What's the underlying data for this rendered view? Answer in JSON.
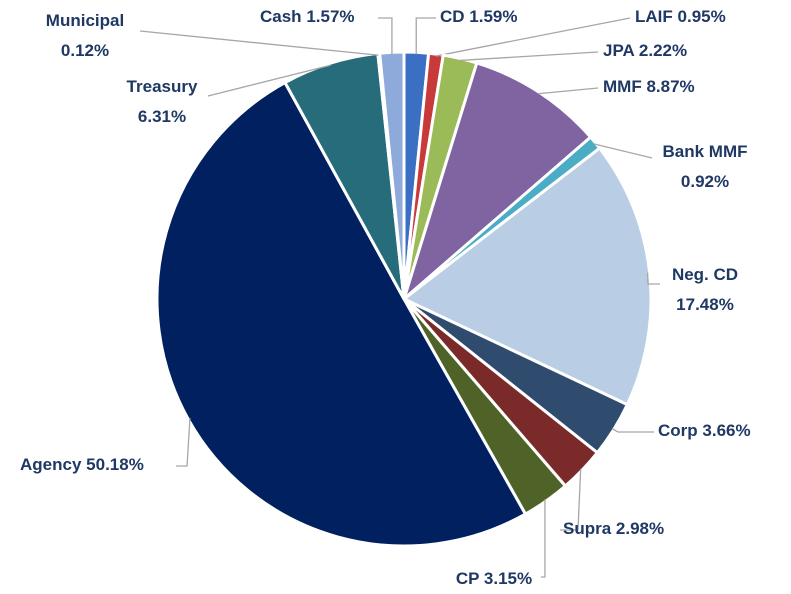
{
  "chart_data": {
    "type": "pie",
    "categories": [
      "CD",
      "LAIF",
      "JPA",
      "MMF",
      "Bank MMF",
      "Neg. CD",
      "Corp",
      "Supra",
      "CP",
      "Agency",
      "Treasury",
      "Municipal",
      "Cash"
    ],
    "values": [
      1.59,
      0.95,
      2.22,
      8.87,
      0.92,
      17.48,
      3.66,
      2.98,
      3.15,
      50.18,
      6.31,
      0.12,
      1.57
    ],
    "value_labels": [
      "1.59%",
      "0.95%",
      "2.22%",
      "8.87%",
      "0.92%",
      "17.48%",
      "3.66%",
      "2.98%",
      "3.15%",
      "50.18%",
      "6.31%",
      "0.12%",
      "1.57%"
    ],
    "colors": [
      "#3a6fc4",
      "#c8393a",
      "#9bbb59",
      "#8064a2",
      "#4bacc6",
      "#b9cde5",
      "#2f4b6e",
      "#7b2a2a",
      "#4f6228",
      "#002060",
      "#266c7a",
      "#a5a5a5",
      "#8eaadb"
    ]
  }
}
